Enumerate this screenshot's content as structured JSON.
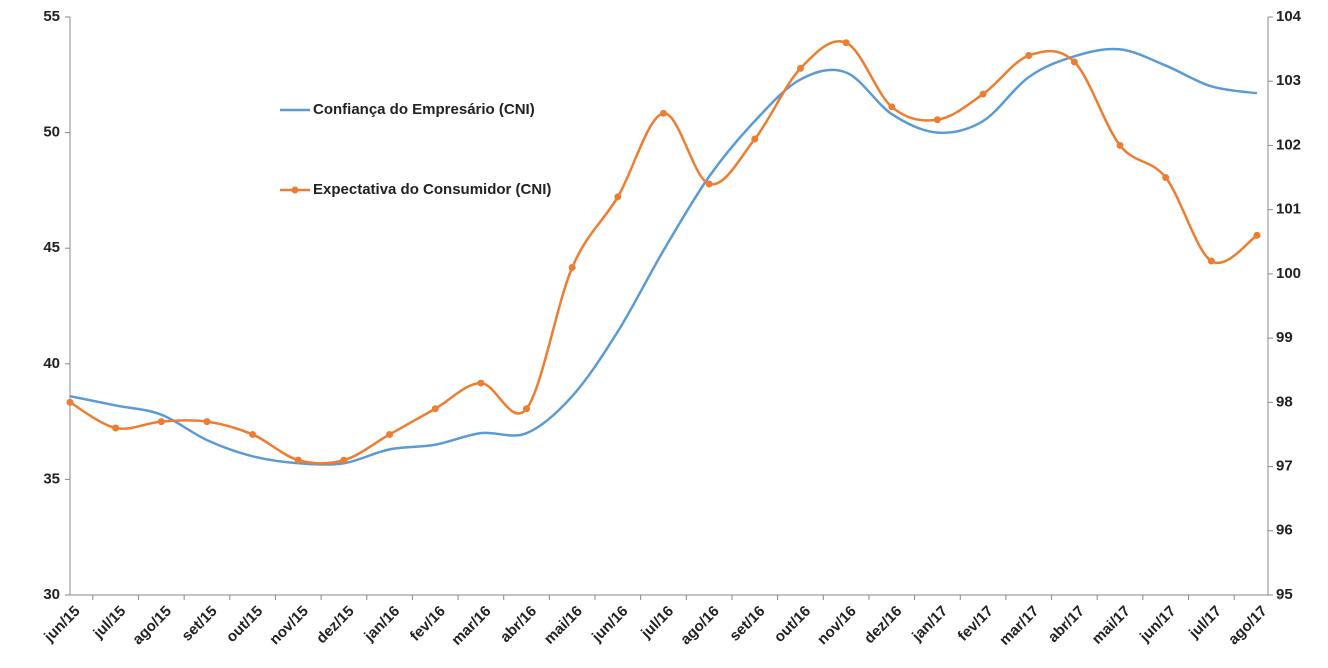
{
  "chart_data": {
    "type": "line",
    "categories": [
      "jun/15",
      "jul/15",
      "ago/15",
      "set/15",
      "out/15",
      "nov/15",
      "dez/15",
      "jan/16",
      "fev/16",
      "mar/16",
      "abr/16",
      "mai/16",
      "jun/16",
      "jul/16",
      "ago/16",
      "set/16",
      "out/16",
      "nov/16",
      "dez/16",
      "jan/17",
      "fev/17",
      "mar/17",
      "abr/17",
      "mai/17",
      "jun/17",
      "jul/17",
      "ago/17"
    ],
    "series": [
      {
        "name": "Confiança do Empresário (CNI)",
        "color": "#5b9bd5",
        "markers": false,
        "values": [
          38.6,
          38.2,
          37.8,
          36.7,
          36.0,
          35.7,
          35.7,
          36.3,
          36.5,
          37.0,
          37.0,
          38.6,
          41.4,
          44.9,
          48.1,
          50.5,
          52.3,
          52.6,
          50.8,
          50.0,
          50.5,
          52.4,
          53.3,
          53.6,
          52.9,
          52.0,
          51.7
        ]
      },
      {
        "name": "Expectativa do Consumidor (CNI)",
        "color": "#ed7d31",
        "markers": true,
        "axis": "y2",
        "values": [
          98.0,
          97.6,
          97.7,
          97.7,
          97.5,
          97.1,
          97.1,
          97.5,
          97.9,
          98.3,
          97.9,
          100.1,
          101.2,
          102.5,
          101.4,
          102.1,
          103.2,
          103.6,
          102.6,
          102.4,
          102.8,
          103.4,
          103.3,
          102.0,
          101.5,
          100.2,
          100.6
        ]
      }
    ],
    "ylim": [
      30,
      55
    ],
    "yticks": [
      30,
      35,
      40,
      45,
      50,
      55
    ],
    "y2lim": [
      95,
      104
    ],
    "y2ticks": [
      95,
      96,
      97,
      98,
      99,
      100,
      101,
      102,
      103,
      104
    ],
    "grid": false,
    "legend": "upper left",
    "smooth": true
  }
}
